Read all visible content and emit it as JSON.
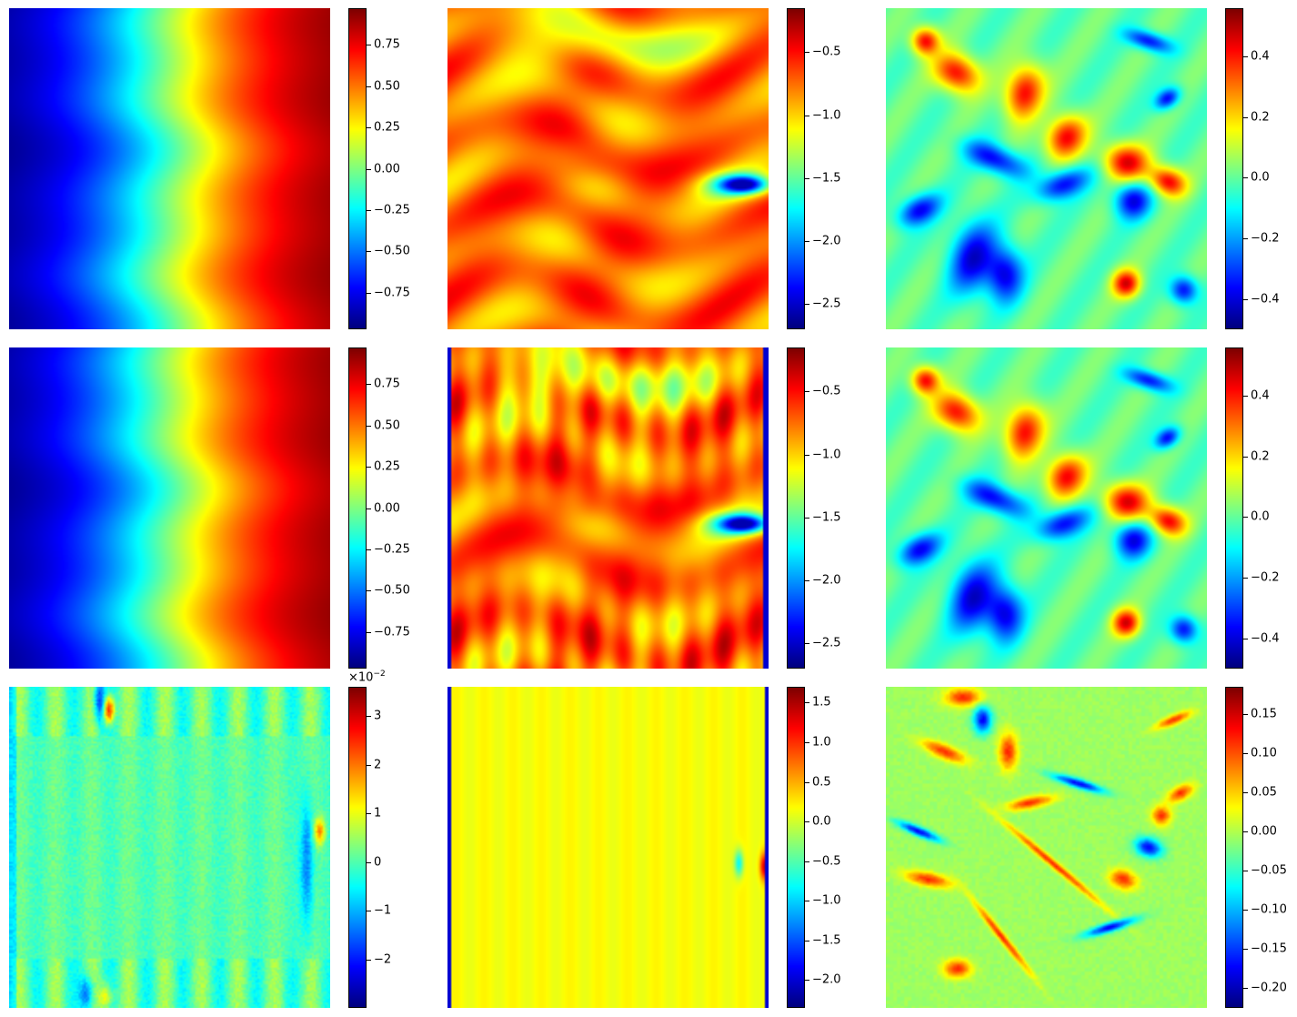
{
  "colormap": "jet",
  "chart_data": [
    {
      "type": "heatmap",
      "row": 0,
      "col": 0,
      "field": "smooth_gradient",
      "colorbar": {
        "range": [
          -0.97,
          0.97
        ],
        "ticks": [
          "−0.75",
          "−0.50",
          "−0.25",
          "0.00",
          "0.25",
          "0.50",
          "0.75"
        ],
        "tick_values": [
          -0.75,
          -0.5,
          -0.25,
          0.0,
          0.25,
          0.5,
          0.75
        ]
      }
    },
    {
      "type": "heatmap",
      "row": 0,
      "col": 1,
      "field": "wavy_field",
      "colorbar": {
        "range": [
          -2.7,
          -0.15
        ],
        "ticks": [
          "−2.5",
          "−2.0",
          "−1.5",
          "−1.0",
          "−0.5"
        ],
        "tick_values": [
          -2.5,
          -2.0,
          -1.5,
          -1.0,
          -0.5
        ]
      }
    },
    {
      "type": "heatmap",
      "row": 0,
      "col": 2,
      "field": "blobs",
      "colorbar": {
        "range": [
          -0.5,
          0.56
        ],
        "ticks": [
          "−0.4",
          "−0.2",
          "0.0",
          "0.2",
          "0.4"
        ],
        "tick_values": [
          -0.4,
          -0.2,
          0.0,
          0.2,
          0.4
        ]
      }
    },
    {
      "type": "heatmap",
      "row": 1,
      "col": 0,
      "field": "smooth_gradient",
      "colorbar": {
        "range": [
          -0.97,
          0.97
        ],
        "ticks": [
          "−0.75",
          "−0.50",
          "−0.25",
          "0.00",
          "0.25",
          "0.50",
          "0.75"
        ],
        "tick_values": [
          -0.75,
          -0.5,
          -0.25,
          0.0,
          0.25,
          0.5,
          0.75
        ]
      }
    },
    {
      "type": "heatmap",
      "row": 1,
      "col": 1,
      "field": "wavy_field_boundary",
      "colorbar": {
        "range": [
          -2.7,
          -0.15
        ],
        "ticks": [
          "−2.5",
          "−2.0",
          "−1.5",
          "−1.0",
          "−0.5"
        ],
        "tick_values": [
          -2.5,
          -2.0,
          -1.5,
          -1.0,
          -0.5
        ]
      }
    },
    {
      "type": "heatmap",
      "row": 1,
      "col": 2,
      "field": "blobs",
      "colorbar": {
        "range": [
          -0.5,
          0.56
        ],
        "ticks": [
          "−0.4",
          "−0.2",
          "0.0",
          "0.2",
          "0.4"
        ],
        "tick_values": [
          -0.4,
          -0.2,
          0.0,
          0.2,
          0.4
        ]
      }
    },
    {
      "type": "heatmap",
      "row": 2,
      "col": 0,
      "field": "noise_error",
      "colorbar": {
        "range": [
          -3.0,
          3.6
        ],
        "offset_label": "×10−2",
        "ticks": [
          "−2",
          "−1",
          "0",
          "1",
          "2",
          "3"
        ],
        "tick_values": [
          -2,
          -1,
          0,
          1,
          2,
          3
        ]
      }
    },
    {
      "type": "heatmap",
      "row": 2,
      "col": 1,
      "field": "flat_error",
      "colorbar": {
        "range": [
          -2.35,
          1.7
        ],
        "ticks": [
          "−2.0",
          "−1.5",
          "−1.0",
          "−0.5",
          "0.0",
          "0.5",
          "1.0",
          "1.5"
        ],
        "tick_values": [
          -2.0,
          -1.5,
          -1.0,
          -0.5,
          0.0,
          0.5,
          1.0,
          1.5
        ]
      }
    },
    {
      "type": "heatmap",
      "row": 2,
      "col": 2,
      "field": "streak_error",
      "colorbar": {
        "range": [
          -0.225,
          0.185
        ],
        "ticks": [
          "−0.20",
          "−0.15",
          "−0.10",
          "−0.05",
          "0.00",
          "0.05",
          "0.10",
          "0.15"
        ],
        "tick_values": [
          -0.2,
          -0.15,
          -0.1,
          -0.05,
          0.0,
          0.05,
          0.1,
          0.15
        ]
      }
    }
  ]
}
